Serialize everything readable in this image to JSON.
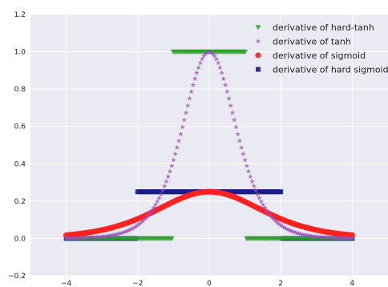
{
  "chart_data": {
    "type": "scatter",
    "title": "",
    "xlabel": "",
    "ylabel": "",
    "xlim": [
      -5,
      5
    ],
    "ylim": [
      -0.2,
      1.2
    ],
    "grid": true,
    "legend_position": "top-right",
    "x_ticks": [
      {
        "value": -4,
        "label": "−4"
      },
      {
        "value": -2,
        "label": "−2"
      },
      {
        "value": 0,
        "label": "0"
      },
      {
        "value": 2,
        "label": "2"
      },
      {
        "value": 4,
        "label": "4"
      }
    ],
    "y_ticks": [
      {
        "value": -0.2,
        "label": "−0.2"
      },
      {
        "value": 0.0,
        "label": "0.0"
      },
      {
        "value": 0.2,
        "label": "0.2"
      },
      {
        "value": 0.4,
        "label": "0.4"
      },
      {
        "value": 0.6,
        "label": "0.6"
      },
      {
        "value": 0.8,
        "label": "0.8"
      },
      {
        "value": 1.0,
        "label": "1.0"
      },
      {
        "value": 1.2,
        "label": "1.2"
      }
    ],
    "x_range": {
      "start": -4,
      "end": 4,
      "step": 0.05
    },
    "series": [
      {
        "name": "derivative of hard-tanh",
        "function": "hard-tanh derivative: 1 for |x| ≤ 1, else 0",
        "marker": "triangle-down",
        "color": "#2e9e2e"
      },
      {
        "name": "derivative of tanh",
        "function": "1 − tanh(x)²",
        "marker": "star",
        "color": "#9b4dbd"
      },
      {
        "name": "derivative of sigmoid",
        "function": "σ(x)(1 − σ(x))",
        "marker": "circle",
        "color": "#ff2020"
      },
      {
        "name": "derivative of hard sigmoid",
        "function": "hard sigmoid derivative: 0.25 for |x| ≤ 2, else 0",
        "marker": "square",
        "color": "#1c1c8c"
      }
    ]
  },
  "colors": {
    "plot_background": "#eaeaf2",
    "grid": "#ffffff"
  }
}
